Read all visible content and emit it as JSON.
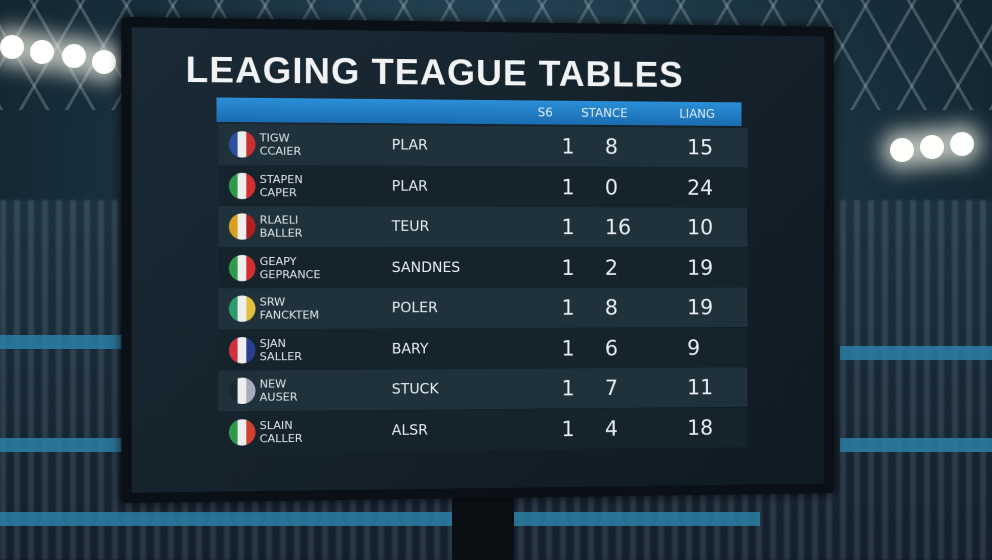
{
  "title": "LEAGING TEAGUE TABLES",
  "headers": [
    "S6",
    "STANCE",
    "LIANG"
  ],
  "rows": [
    {
      "name1": "TIGW",
      "name2": "CCAIER",
      "col": "PLAR",
      "a": "1",
      "b": "8",
      "c": "15",
      "logo_colors": [
        "#2a4fa0",
        "#c83030"
      ]
    },
    {
      "name1": "STAPEN",
      "name2": "CAPER",
      "col": "PLAR",
      "a": "1",
      "b": "0",
      "c": "24",
      "logo_colors": [
        "#2f9a4a",
        "#d23030"
      ]
    },
    {
      "name1": "RLAELI",
      "name2": "BALLER",
      "col": "TEUR",
      "a": "1",
      "b": "16",
      "c": "10",
      "logo_colors": [
        "#d8a020",
        "#b02020"
      ]
    },
    {
      "name1": "GEAPY",
      "name2": "GEPRANCE",
      "col": "SANDNES",
      "a": "1",
      "b": "2",
      "c": "19",
      "logo_colors": [
        "#2f9a4a",
        "#d23030"
      ]
    },
    {
      "name1": "SRW",
      "name2": "FANCKTEM",
      "col": "POLER",
      "a": "1",
      "b": "8",
      "c": "19",
      "logo_colors": [
        "#2f9a6a",
        "#e0c040"
      ]
    },
    {
      "name1": "SJAN",
      "name2": "SALLER",
      "col": "BARY",
      "a": "1",
      "b": "6",
      "c": "9",
      "logo_colors": [
        "#d23040",
        "#2a3f90"
      ]
    },
    {
      "name1": "NEW",
      "name2": "AUSER",
      "col": "STUCK",
      "a": "1",
      "b": "7",
      "c": "11",
      "logo_colors": [
        "#1a2a35",
        "#aab"
      ]
    },
    {
      "name1": "SLAIN",
      "name2": "CALLER",
      "col": "ALSR",
      "a": "1",
      "b": "4",
      "c": "18",
      "logo_colors": [
        "#2f9a4a",
        "#d04030"
      ]
    }
  ]
}
